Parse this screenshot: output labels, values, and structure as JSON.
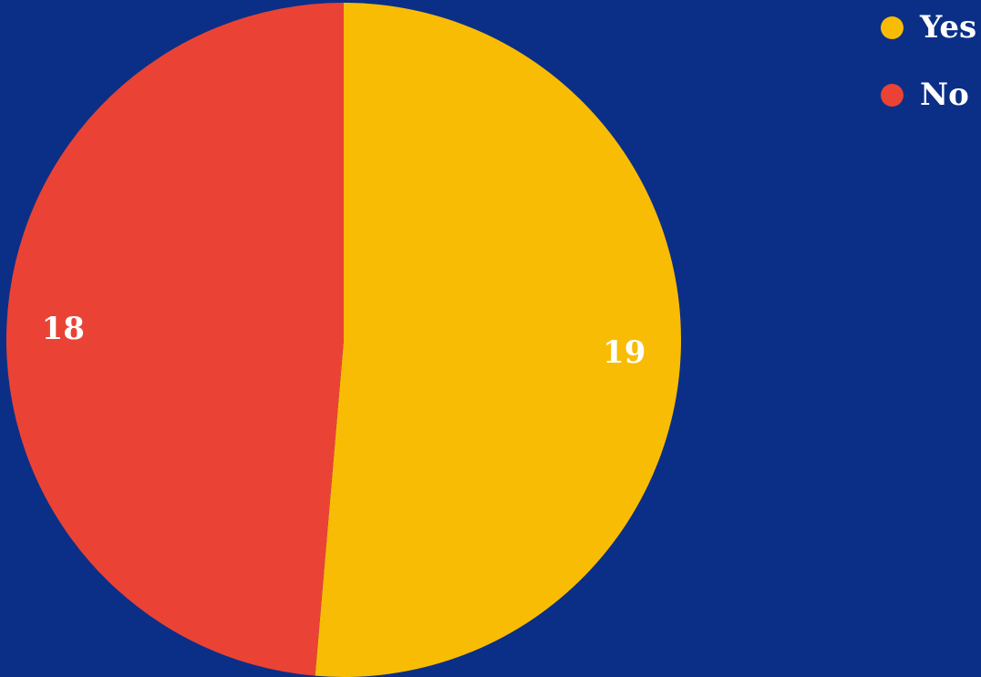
{
  "chart_data": {
    "type": "pie",
    "slices": [
      {
        "label": "Yes",
        "value": 19,
        "color": "#f9bc04"
      },
      {
        "label": "No",
        "value": 18,
        "color": "#ea4335"
      }
    ],
    "start_angle_degrees": 0,
    "direction": "clockwise",
    "background_color": "#0b2f86",
    "legend": "top-right"
  }
}
